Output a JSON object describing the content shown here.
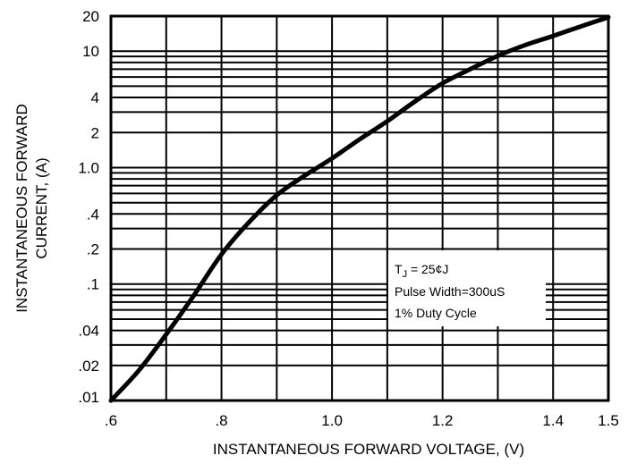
{
  "chart_data": {
    "type": "line",
    "title": "",
    "xlabel": "INSTANTANEOUS FORWARD VOLTAGE, (V)",
    "ylabel_line1": "INSTANTANEOUS FORWARD",
    "ylabel_line2": "CURRENT, (A)",
    "x_scale": "linear",
    "y_scale": "log",
    "xlim": [
      0.6,
      1.5
    ],
    "ylim": [
      0.01,
      20
    ],
    "grid": true,
    "x_ticks": [
      {
        "value": 0.6,
        "label": ".6"
      },
      {
        "value": 0.8,
        "label": ".8"
      },
      {
        "value": 1.0,
        "label": "1.0"
      },
      {
        "value": 1.2,
        "label": "1.2"
      },
      {
        "value": 1.4,
        "label": "1.4"
      },
      {
        "value": 1.5,
        "label": "1.5"
      }
    ],
    "x_gridlines": [
      0.7,
      0.8,
      0.9,
      1.0,
      1.1,
      1.2,
      1.3,
      1.4
    ],
    "y_ticks": [
      {
        "value": 20,
        "label": "20"
      },
      {
        "value": 10,
        "label": "10"
      },
      {
        "value": 4,
        "label": "4"
      },
      {
        "value": 2,
        "label": "2"
      },
      {
        "value": 1,
        "label": "1.0"
      },
      {
        "value": 0.4,
        "label": ".4"
      },
      {
        "value": 0.2,
        "label": ".2"
      },
      {
        "value": 0.1,
        "label": ".1"
      },
      {
        "value": 0.04,
        "label": ".04"
      },
      {
        "value": 0.02,
        "label": ".02"
      },
      {
        "value": 0.01,
        "label": ".01"
      }
    ],
    "y_gridlines": [
      0.02,
      0.03,
      0.04,
      0.05,
      0.06,
      0.07,
      0.08,
      0.09,
      0.1,
      0.2,
      0.3,
      0.4,
      0.5,
      0.6,
      0.7,
      0.8,
      0.9,
      1,
      2,
      3,
      4,
      5,
      6,
      7,
      8,
      9,
      10
    ],
    "series": [
      {
        "color": "#000000",
        "x": [
          0.6,
          0.65,
          0.7,
          0.75,
          0.8,
          0.85,
          0.9,
          0.95,
          1.0,
          1.05,
          1.1,
          1.15,
          1.2,
          1.25,
          1.3,
          1.35,
          1.4,
          1.45,
          1.5
        ],
        "y": [
          0.01,
          0.018,
          0.037,
          0.08,
          0.18,
          0.34,
          0.58,
          0.85,
          1.2,
          1.75,
          2.5,
          3.7,
          5.3,
          7.0,
          9.1,
          11.3,
          13.5,
          16.3,
          19.5
        ]
      }
    ],
    "legend": {
      "placement": "bottom-right",
      "line1_main": "T",
      "line1_sub": "J",
      "line1_rest": " = 25¢J",
      "line2": "Pulse Width=300uS",
      "line3": "1% Duty Cycle"
    }
  }
}
